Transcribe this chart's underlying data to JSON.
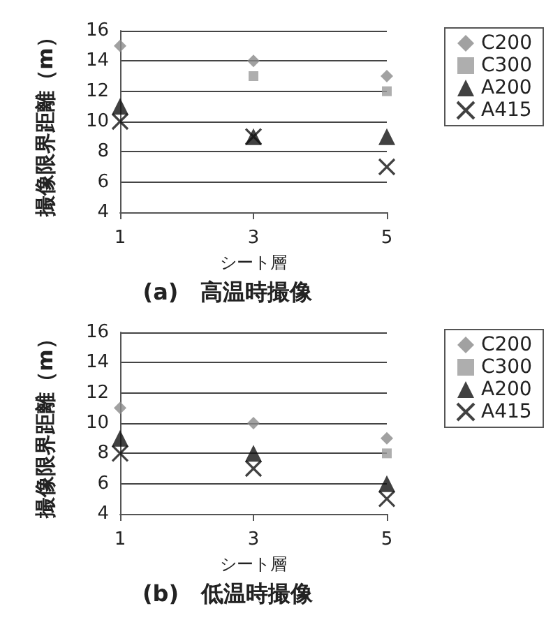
{
  "chart_data": [
    {
      "type": "scatter",
      "title": "(a)　高温時撮像",
      "xlabel": "シート層",
      "ylabel": "撮像限界距離（m）",
      "categories": [
        "1",
        "3",
        "5"
      ],
      "ylim": [
        4,
        16
      ],
      "yticks": [
        4,
        6,
        8,
        10,
        12,
        14,
        16
      ],
      "grid": "y",
      "legend": "top right",
      "series": [
        {
          "name": "C200",
          "color": "#8a8a8a",
          "marker": "diamond",
          "values": [
            15,
            14,
            13
          ]
        },
        {
          "name": "C300",
          "color": "#9a9a9a",
          "marker": "square",
          "values": [
            null,
            13,
            12
          ]
        },
        {
          "name": "A200",
          "color": "#111111",
          "marker": "triangle",
          "values": [
            11,
            9,
            9
          ]
        },
        {
          "name": "A415",
          "color": "#111111",
          "marker": "cross",
          "values": [
            10,
            9,
            7
          ]
        }
      ]
    },
    {
      "type": "scatter",
      "title": "(b)　低温時撮像",
      "xlabel": "シート層",
      "ylabel": "撮像限界距離（m）",
      "categories": [
        "1",
        "3",
        "5"
      ],
      "ylim": [
        4,
        16
      ],
      "yticks": [
        4,
        6,
        8,
        10,
        12,
        14,
        16
      ],
      "grid": "y",
      "legend": "top right",
      "series": [
        {
          "name": "C200",
          "color": "#8a8a8a",
          "marker": "diamond",
          "values": [
            11,
            10,
            9
          ]
        },
        {
          "name": "C300",
          "color": "#9a9a9a",
          "marker": "square",
          "values": [
            null,
            null,
            8
          ]
        },
        {
          "name": "A200",
          "color": "#111111",
          "marker": "triangle",
          "values": [
            9,
            8,
            6
          ]
        },
        {
          "name": "A415",
          "color": "#111111",
          "marker": "cross",
          "values": [
            8,
            7,
            5
          ]
        }
      ]
    }
  ]
}
